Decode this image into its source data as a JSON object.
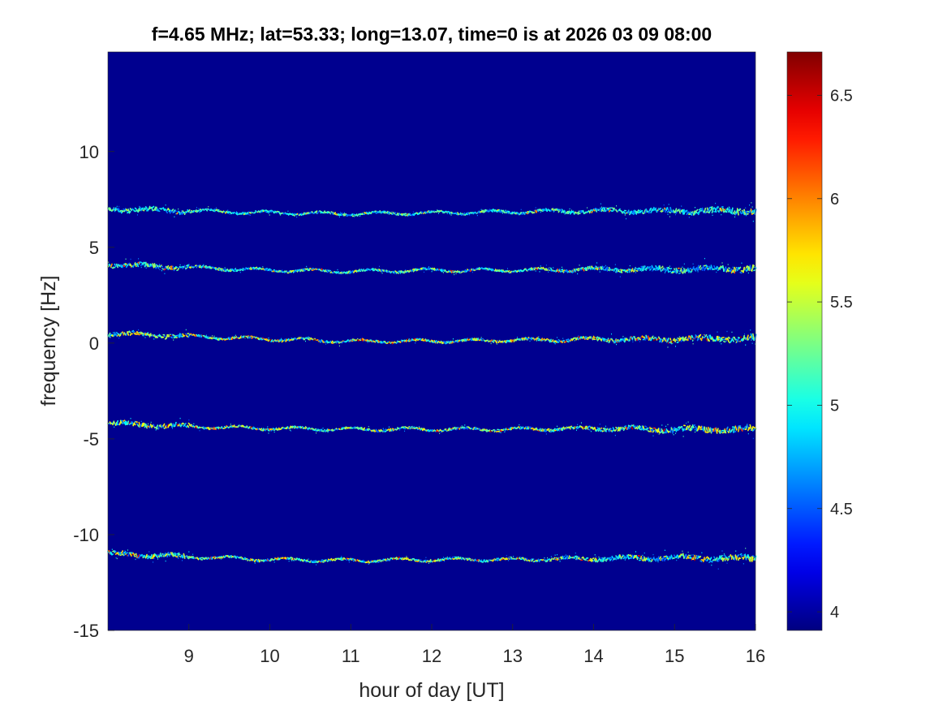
{
  "chart_data": {
    "type": "heatmap",
    "title": "f=4.65 MHz;  lat=53.33; long=13.07, time=0 is at 2026 03 09 08:00",
    "xlabel": "hour of day [UT]",
    "ylabel": "frequency [Hz]",
    "xlim": [
      8,
      16
    ],
    "ylim": [
      -15,
      15.2
    ],
    "xticks": [
      9,
      10,
      11,
      12,
      13,
      14,
      15,
      16
    ],
    "yticks": [
      -15,
      -10,
      -5,
      0,
      5,
      10
    ],
    "colorbar": {
      "colormap": "jet",
      "clim": [
        3.91,
        6.71
      ],
      "ticks": [
        4,
        4.5,
        5,
        5.5,
        6,
        6.5
      ]
    },
    "background_color": "#00008f",
    "traces": [
      {
        "points": [
          [
            8,
            7.0
          ],
          [
            9,
            6.9
          ],
          [
            10,
            6.8
          ],
          [
            11,
            6.75
          ],
          [
            12,
            6.8
          ],
          [
            13,
            6.85
          ],
          [
            14,
            6.9
          ],
          [
            15,
            6.9
          ],
          [
            16,
            6.9
          ]
        ]
      },
      {
        "points": [
          [
            8,
            4.1
          ],
          [
            9,
            3.95
          ],
          [
            10,
            3.8
          ],
          [
            11,
            3.75
          ],
          [
            12,
            3.8
          ],
          [
            13,
            3.8
          ],
          [
            14,
            3.85
          ],
          [
            15,
            3.85
          ],
          [
            16,
            3.9
          ]
        ]
      },
      {
        "points": [
          [
            8,
            0.5
          ],
          [
            9,
            0.35
          ],
          [
            10,
            0.2
          ],
          [
            11,
            0.1
          ],
          [
            12,
            0.1
          ],
          [
            13,
            0.15
          ],
          [
            14,
            0.2
          ],
          [
            15,
            0.2
          ],
          [
            16,
            0.25
          ]
        ]
      },
      {
        "points": [
          [
            8,
            -4.2
          ],
          [
            9,
            -4.35
          ],
          [
            10,
            -4.45
          ],
          [
            11,
            -4.5
          ],
          [
            12,
            -4.5
          ],
          [
            13,
            -4.5
          ],
          [
            14,
            -4.45
          ],
          [
            15,
            -4.5
          ],
          [
            16,
            -4.5
          ]
        ]
      },
      {
        "points": [
          [
            8,
            -11.0
          ],
          [
            9,
            -11.15
          ],
          [
            10,
            -11.3
          ],
          [
            11,
            -11.35
          ],
          [
            12,
            -11.3
          ],
          [
            13,
            -11.3
          ],
          [
            14,
            -11.25
          ],
          [
            15,
            -11.2
          ],
          [
            16,
            -11.25
          ]
        ]
      }
    ]
  }
}
